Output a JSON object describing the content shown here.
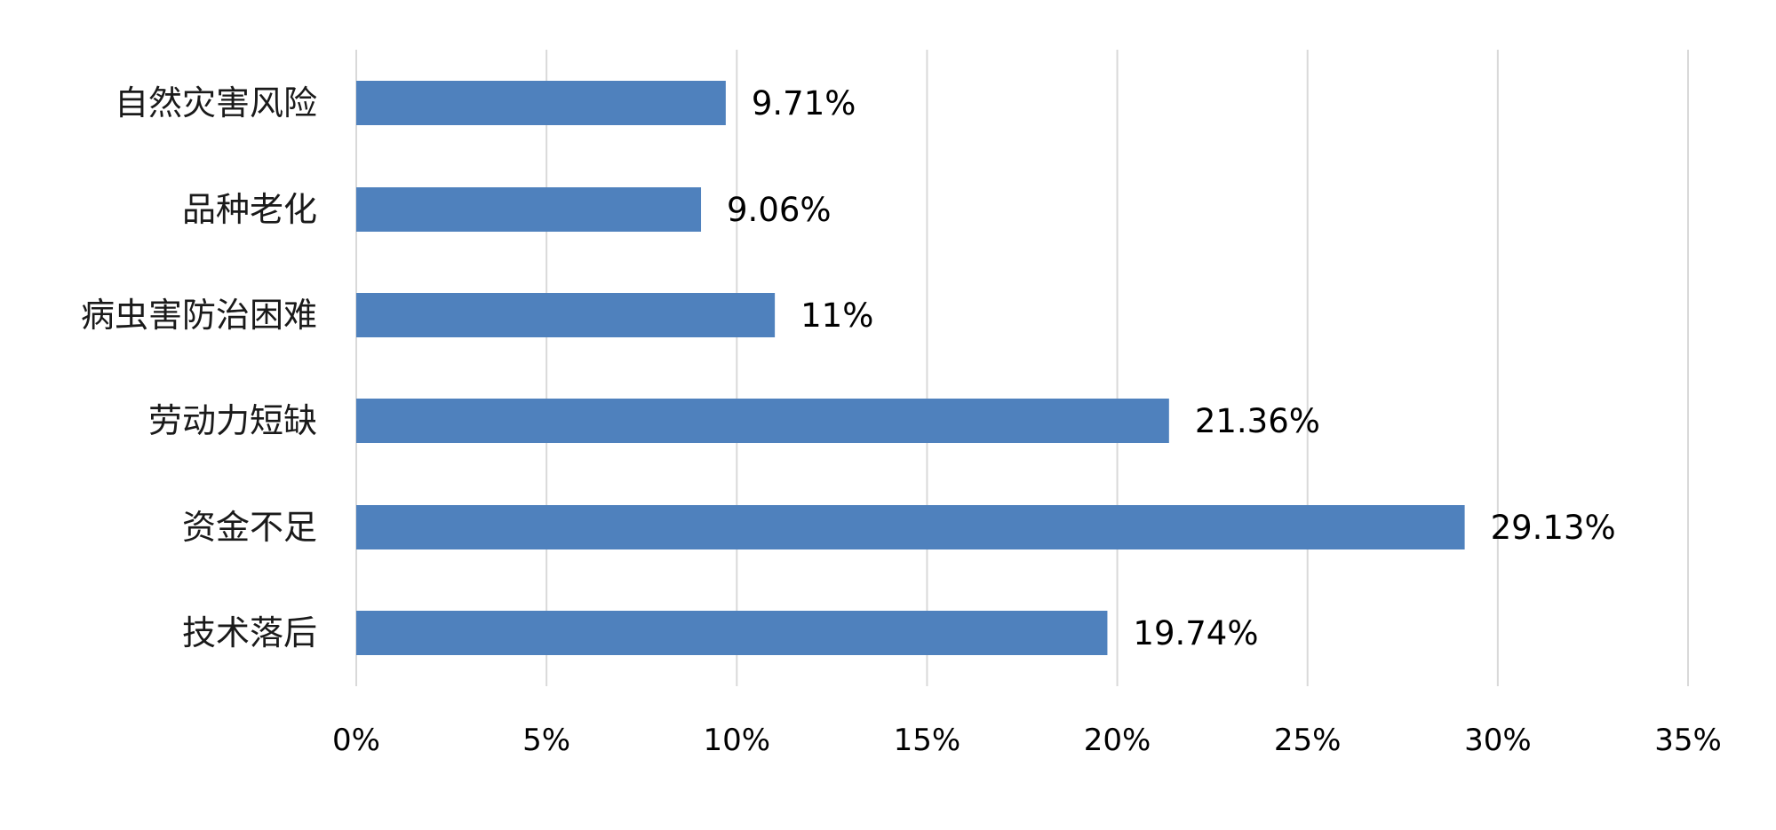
{
  "chart_data": {
    "type": "bar",
    "orientation": "horizontal",
    "categories": [
      "自然灾害风险",
      "品种老化",
      "病虫害防治困难",
      "劳动力短缺",
      "资金不足",
      "技术落后"
    ],
    "values": [
      9.71,
      9.06,
      11,
      21.36,
      29.13,
      19.74
    ],
    "data_labels": [
      "9.71%",
      "9.06%",
      "11%",
      "21.36%",
      "29.13%",
      "19.74%"
    ],
    "xlim": [
      0,
      35
    ],
    "x_ticks": [
      0,
      5,
      10,
      15,
      20,
      25,
      30,
      35
    ],
    "x_tick_labels": [
      "0%",
      "5%",
      "10%",
      "15%",
      "20%",
      "25%",
      "30%",
      "35%"
    ],
    "grid": "vertical",
    "legend": "none",
    "bar_color": "#4f81bd"
  }
}
